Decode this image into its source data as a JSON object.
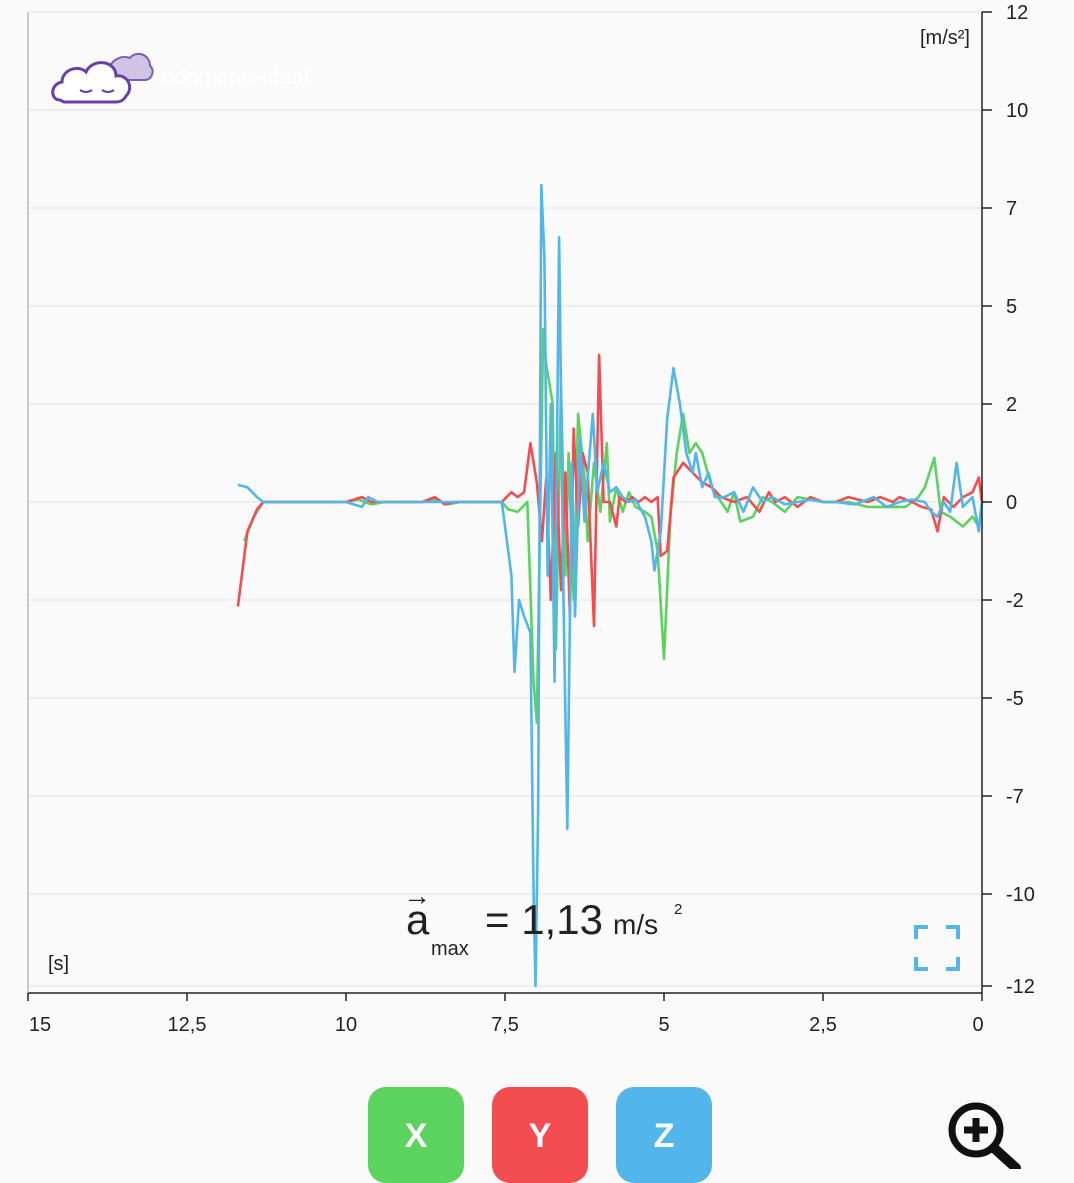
{
  "app": {
    "logo_text": "odometer-ideal"
  },
  "colors": {
    "x": "#5cd35f",
    "y": "#f44d51",
    "z": "#53b6ea",
    "grid": "#e2e2e2",
    "axis": "#222222",
    "fullscreen_icon": "#53b6ea"
  },
  "amax": {
    "symbol": "a",
    "subscript": "max",
    "value": "= 1,13",
    "unit": "m/s",
    "unit_exp": "2"
  },
  "buttons": {
    "x_label": "X",
    "y_label": "Y",
    "z_label": "Z"
  },
  "icons": {
    "logo": "cloud-logo-icon",
    "fullscreen": "fullscreen-icon",
    "zoom": "zoom-in-icon"
  },
  "chart_data": {
    "type": "line",
    "xlabel_unit": "[s]",
    "ylabel_unit": "[m/s²]",
    "xlim": [
      15,
      0
    ],
    "x_reversed": true,
    "x_ticks": [
      15,
      12.5,
      10,
      7.5,
      5,
      2.5,
      0
    ],
    "x_tick_labels": [
      "15",
      "12,5",
      "10",
      "7,5",
      "5",
      "2,5",
      "0"
    ],
    "y_ticks": [
      12,
      10,
      7,
      5,
      2,
      0,
      -2,
      -5,
      -7,
      -10,
      -12
    ],
    "y_tick_labels": [
      "12",
      "10",
      "7",
      "5",
      "2",
      "0",
      "-2",
      "-5",
      "-7",
      "-10",
      "-12"
    ],
    "grid": true,
    "series": [
      {
        "name": "X",
        "color_key": "x",
        "points": [
          [
            11.6,
            -0.8
          ],
          [
            11.45,
            -0.3
          ],
          [
            11.3,
            0
          ],
          [
            10.0,
            0
          ],
          [
            9.8,
            0.05
          ],
          [
            9.6,
            -0.05
          ],
          [
            9.4,
            0
          ],
          [
            8.8,
            0
          ],
          [
            8.6,
            0.05
          ],
          [
            8.4,
            -0.05
          ],
          [
            8.2,
            0
          ],
          [
            7.55,
            0
          ],
          [
            7.45,
            -0.15
          ],
          [
            7.3,
            -0.2
          ],
          [
            7.15,
            0
          ],
          [
            7.05,
            -4.5
          ],
          [
            7.0,
            -5.5
          ],
          [
            6.9,
            4.3
          ],
          [
            6.85,
            3.2
          ],
          [
            6.75,
            2.0
          ],
          [
            6.7,
            -3.5
          ],
          [
            6.62,
            2.5
          ],
          [
            6.55,
            -1.5
          ],
          [
            6.5,
            1.0
          ],
          [
            6.42,
            -2.0
          ],
          [
            6.35,
            1.8
          ],
          [
            6.25,
            0.5
          ],
          [
            6.2,
            -0.8
          ],
          [
            6.1,
            0.8
          ],
          [
            6.0,
            -0.2
          ],
          [
            5.9,
            1.2
          ],
          [
            5.85,
            -0.4
          ],
          [
            5.75,
            0.3
          ],
          [
            5.65,
            -0.2
          ],
          [
            5.55,
            0.2
          ],
          [
            5.45,
            -0.1
          ],
          [
            5.3,
            -0.2
          ],
          [
            5.2,
            -0.3
          ],
          [
            5.1,
            -1.0
          ],
          [
            5.0,
            -3.8
          ],
          [
            4.9,
            -0.3
          ],
          [
            4.8,
            1.0
          ],
          [
            4.7,
            1.8
          ],
          [
            4.6,
            1.0
          ],
          [
            4.5,
            1.2
          ],
          [
            4.4,
            1.0
          ],
          [
            4.25,
            0.3
          ],
          [
            4.1,
            0.0
          ],
          [
            4.0,
            -0.2
          ],
          [
            3.9,
            0.2
          ],
          [
            3.8,
            -0.4
          ],
          [
            3.6,
            -0.3
          ],
          [
            3.45,
            0.1
          ],
          [
            3.3,
            0.0
          ],
          [
            3.1,
            -0.2
          ],
          [
            2.9,
            0.1
          ],
          [
            2.5,
            0.0
          ],
          [
            2.1,
            0.0
          ],
          [
            1.8,
            -0.1
          ],
          [
            1.4,
            -0.1
          ],
          [
            1.2,
            -0.1
          ],
          [
            1.0,
            0.1
          ],
          [
            0.9,
            0.3
          ],
          [
            0.75,
            0.9
          ],
          [
            0.65,
            -0.2
          ],
          [
            0.5,
            -0.3
          ],
          [
            0.3,
            -0.5
          ],
          [
            0.15,
            -0.3
          ],
          [
            0.05,
            -0.5
          ],
          [
            0.0,
            0.0
          ]
        ]
      },
      {
        "name": "Y",
        "color_key": "y",
        "points": [
          [
            11.7,
            -2.2
          ],
          [
            11.55,
            -0.6
          ],
          [
            11.4,
            -0.15
          ],
          [
            11.3,
            0
          ],
          [
            10.0,
            0
          ],
          [
            9.75,
            0.1
          ],
          [
            9.6,
            0
          ],
          [
            8.8,
            0
          ],
          [
            8.6,
            0.1
          ],
          [
            8.45,
            -0.05
          ],
          [
            8.3,
            0
          ],
          [
            7.55,
            0
          ],
          [
            7.4,
            0.2
          ],
          [
            7.3,
            0.1
          ],
          [
            7.2,
            0.2
          ],
          [
            7.1,
            1.2
          ],
          [
            7.0,
            0.4
          ],
          [
            6.92,
            -0.8
          ],
          [
            6.85,
            0.5
          ],
          [
            6.78,
            -2.0
          ],
          [
            6.7,
            1.0
          ],
          [
            6.62,
            -1.8
          ],
          [
            6.55,
            0.6
          ],
          [
            6.48,
            -2.5
          ],
          [
            6.42,
            1.5
          ],
          [
            6.35,
            -0.5
          ],
          [
            6.28,
            1.0
          ],
          [
            6.2,
            0.6
          ],
          [
            6.1,
            -2.8
          ],
          [
            6.02,
            3.5
          ],
          [
            5.95,
            0.0
          ],
          [
            5.85,
            0.0
          ],
          [
            5.75,
            -0.5
          ],
          [
            5.7,
            0.1
          ],
          [
            5.6,
            0.0
          ],
          [
            5.5,
            0.1
          ],
          [
            5.4,
            0.0
          ],
          [
            5.3,
            0.1
          ],
          [
            5.2,
            0.0
          ],
          [
            5.1,
            0.1
          ],
          [
            5.05,
            -1.1
          ],
          [
            4.95,
            -1.0
          ],
          [
            4.85,
            0.5
          ],
          [
            4.7,
            0.8
          ],
          [
            4.55,
            0.6
          ],
          [
            4.4,
            0.4
          ],
          [
            4.25,
            0.3
          ],
          [
            4.1,
            0.1
          ],
          [
            3.9,
            0.0
          ],
          [
            3.7,
            0.1
          ],
          [
            3.5,
            -0.2
          ],
          [
            3.35,
            0.2
          ],
          [
            3.25,
            0.0
          ],
          [
            3.1,
            0.1
          ],
          [
            2.9,
            -0.1
          ],
          [
            2.7,
            0.1
          ],
          [
            2.5,
            0.0
          ],
          [
            2.3,
            0.0
          ],
          [
            2.1,
            0.1
          ],
          [
            1.8,
            0.0
          ],
          [
            1.6,
            0.1
          ],
          [
            1.4,
            0.0
          ],
          [
            1.3,
            0.1
          ],
          [
            1.1,
            0.0
          ],
          [
            0.95,
            -0.1
          ],
          [
            0.8,
            -0.15
          ],
          [
            0.7,
            -0.6
          ],
          [
            0.6,
            0.1
          ],
          [
            0.45,
            -0.1
          ],
          [
            0.3,
            0.1
          ],
          [
            0.15,
            0.2
          ],
          [
            0.05,
            0.5
          ],
          [
            0.0,
            0.0
          ]
        ]
      },
      {
        "name": "Z",
        "color_key": "z",
        "points": [
          [
            11.7,
            0.35
          ],
          [
            11.55,
            0.3
          ],
          [
            11.4,
            0.1
          ],
          [
            11.3,
            0
          ],
          [
            10.0,
            0
          ],
          [
            9.75,
            -0.1
          ],
          [
            9.65,
            0.1
          ],
          [
            9.5,
            0
          ],
          [
            8.6,
            0
          ],
          [
            8.45,
            0
          ],
          [
            7.55,
            0
          ],
          [
            7.4,
            -1.5
          ],
          [
            7.35,
            -4.2
          ],
          [
            7.28,
            -2.0
          ],
          [
            7.2,
            -2.5
          ],
          [
            7.1,
            -3.0
          ],
          [
            7.05,
            -10.0
          ],
          [
            7.02,
            -12.0
          ],
          [
            6.98,
            -7.5
          ],
          [
            6.93,
            7.7
          ],
          [
            6.88,
            6.0
          ],
          [
            6.83,
            -1.5
          ],
          [
            6.78,
            2.0
          ],
          [
            6.72,
            -4.5
          ],
          [
            6.65,
            6.4
          ],
          [
            6.58,
            -2.0
          ],
          [
            6.52,
            -8.0
          ],
          [
            6.45,
            0.8
          ],
          [
            6.4,
            -2.5
          ],
          [
            6.32,
            1.3
          ],
          [
            6.25,
            -0.4
          ],
          [
            6.2,
            0.5
          ],
          [
            6.12,
            1.8
          ],
          [
            6.05,
            0.2
          ],
          [
            5.95,
            0.8
          ],
          [
            5.85,
            0.2
          ],
          [
            5.75,
            0.3
          ],
          [
            5.65,
            0.1
          ],
          [
            5.55,
            0.0
          ],
          [
            5.45,
            0.05
          ],
          [
            5.3,
            -0.3
          ],
          [
            5.2,
            -0.8
          ],
          [
            5.15,
            -1.4
          ],
          [
            5.05,
            -0.6
          ],
          [
            4.95,
            1.7
          ],
          [
            4.85,
            3.1
          ],
          [
            4.75,
            2.0
          ],
          [
            4.65,
            1.0
          ],
          [
            4.55,
            0.6
          ],
          [
            4.5,
            1.0
          ],
          [
            4.4,
            0.3
          ],
          [
            4.3,
            0.6
          ],
          [
            4.2,
            0.1
          ],
          [
            4.05,
            0.1
          ],
          [
            3.9,
            0.2
          ],
          [
            3.75,
            -0.2
          ],
          [
            3.6,
            0.3
          ],
          [
            3.45,
            0.0
          ],
          [
            3.3,
            0.1
          ],
          [
            3.1,
            -0.05
          ],
          [
            2.9,
            0.0
          ],
          [
            2.7,
            0.05
          ],
          [
            2.5,
            0.0
          ],
          [
            2.3,
            0.0
          ],
          [
            2.0,
            -0.05
          ],
          [
            1.7,
            0.1
          ],
          [
            1.5,
            -0.1
          ],
          [
            1.3,
            0.0
          ],
          [
            1.1,
            0.05
          ],
          [
            0.9,
            0.0
          ],
          [
            0.8,
            -0.2
          ],
          [
            0.7,
            -0.3
          ],
          [
            0.6,
            0.0
          ],
          [
            0.5,
            -0.2
          ],
          [
            0.4,
            0.8
          ],
          [
            0.3,
            -0.1
          ],
          [
            0.15,
            0.1
          ],
          [
            0.05,
            -0.6
          ],
          [
            0.0,
            0.0
          ]
        ]
      }
    ]
  }
}
